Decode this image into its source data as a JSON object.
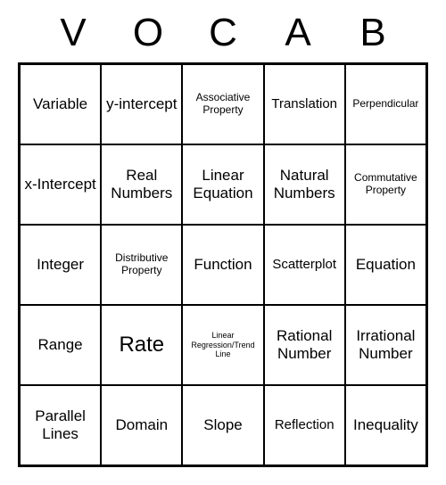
{
  "header": {
    "letters": [
      "V",
      "O",
      "C",
      "A",
      "B"
    ],
    "font_size": 44,
    "color": "#000000"
  },
  "bingo": {
    "type": "table",
    "rows": 5,
    "cols": 5,
    "border_color": "#000000",
    "background_color": "#ffffff",
    "cells": [
      {
        "text": "Variable",
        "size": "normal"
      },
      {
        "text": "y-intercept",
        "size": "normal"
      },
      {
        "text": "Associative Property",
        "size": "small"
      },
      {
        "text": "Translation",
        "size": "medium"
      },
      {
        "text": "Perpendicular",
        "size": "small"
      },
      {
        "text": "x-Intercept",
        "size": "normal"
      },
      {
        "text": "Real Numbers",
        "size": "normal"
      },
      {
        "text": "Linear Equation",
        "size": "normal"
      },
      {
        "text": "Natural Numbers",
        "size": "normal"
      },
      {
        "text": "Commutative Property",
        "size": "small"
      },
      {
        "text": "Integer",
        "size": "normal"
      },
      {
        "text": "Distributive Property",
        "size": "small"
      },
      {
        "text": "Function",
        "size": "normal"
      },
      {
        "text": "Scatterplot",
        "size": "medium"
      },
      {
        "text": "Equation",
        "size": "normal"
      },
      {
        "text": "Range",
        "size": "normal"
      },
      {
        "text": "Rate",
        "size": "large"
      },
      {
        "text": "Linear Regression/Trend Line",
        "size": "xsmall"
      },
      {
        "text": "Rational Number",
        "size": "normal"
      },
      {
        "text": "Irrational Number",
        "size": "normal"
      },
      {
        "text": "Parallel Lines",
        "size": "normal"
      },
      {
        "text": "Domain",
        "size": "normal"
      },
      {
        "text": "Slope",
        "size": "normal"
      },
      {
        "text": "Reflection",
        "size": "medium"
      },
      {
        "text": "Inequality",
        "size": "normal"
      }
    ]
  }
}
